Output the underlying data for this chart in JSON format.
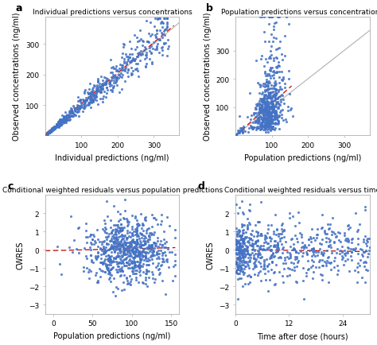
{
  "panel_a": {
    "title": "Individual predictions versus concentrations",
    "xlabel": "Individual predictions (ng/ml)",
    "ylabel": "Observed concentrations (ng/ml)",
    "xlim": [
      0,
      370
    ],
    "ylim": [
      0,
      390
    ],
    "xticks": [
      100,
      200,
      300
    ],
    "yticks": [
      100,
      200,
      300
    ]
  },
  "panel_b": {
    "title": "Population predictions versus concentrations",
    "xlabel": "Population predictions (ng/ml)",
    "ylabel": "Observed concentrations (ng/ml)",
    "xlim": [
      0,
      370
    ],
    "ylim": [
      0,
      420
    ],
    "xticks": [
      100,
      200,
      300
    ],
    "yticks": [
      100,
      200,
      300
    ]
  },
  "panel_c": {
    "title": "Conditional weighted residuals versus population predictions",
    "xlabel": "Population predictions (ng/ml)",
    "ylabel": "CWRES",
    "xlim": [
      -10,
      160
    ],
    "ylim": [
      -3.5,
      3.0
    ],
    "xticks": [
      0,
      50,
      100,
      150
    ],
    "yticks": [
      -3,
      -2,
      -1,
      0,
      1,
      2
    ]
  },
  "panel_d": {
    "title": "Conditional weighted residuals versus time",
    "xlabel": "Time after dose (hours)",
    "ylabel": "CWRES",
    "xlim": [
      0,
      30
    ],
    "ylim": [
      -3.5,
      3.0
    ],
    "xticks": [
      0,
      12,
      24
    ],
    "yticks": [
      -3,
      -2,
      -1,
      0,
      1,
      2
    ]
  },
  "dot_color": "#4472c4",
  "dot_size": 5,
  "dot_alpha": 0.85,
  "identity_color": "#b0b0b0",
  "trend_color": "#cc0000",
  "hline_color": "#c8c8c8",
  "background_color": "#ffffff",
  "axes_border_color": "#b0b0b0",
  "title_fontsize": 6.5,
  "label_fontsize": 7,
  "tick_fontsize": 6.5,
  "panel_label_fontsize": 9
}
